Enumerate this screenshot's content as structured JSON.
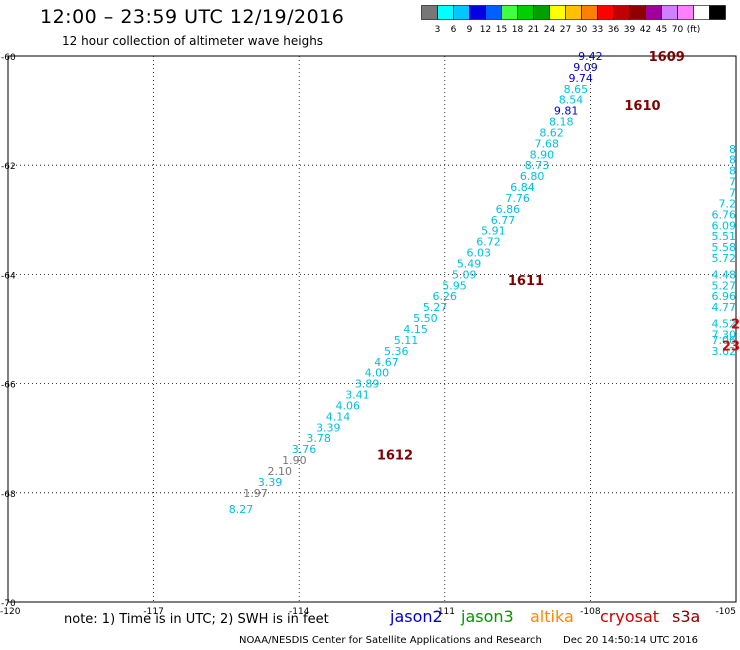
{
  "title": "12:00 – 23:59 UTC 12/19/2016",
  "subtitle": "12 hour collection of altimeter wave heighs",
  "colorbar": {
    "colors": [
      "#777777",
      "#00ffff",
      "#00c8ff",
      "#0000e0",
      "#0060ff",
      "#40ff40",
      "#00d000",
      "#00a000",
      "#ffff00",
      "#ffc000",
      "#ff8000",
      "#ff0000",
      "#c00000",
      "#900000",
      "#a000a0",
      "#d080ff",
      "#ff80ff",
      "#ffffff",
      "#000000"
    ],
    "labels": [
      "3",
      "6",
      "9",
      "12",
      "15",
      "18",
      "21",
      "24",
      "27",
      "30",
      "33",
      "36",
      "39",
      "42",
      "45",
      "70",
      "(ft)"
    ]
  },
  "axes": {
    "lon_ticks": [
      "-117",
      "-114",
      "-111",
      "-108",
      "-105"
    ],
    "lat_ticks": [
      "-60",
      "-62",
      "-64",
      "-66",
      "-68",
      "-70"
    ],
    "corner_label": "-120",
    "lon_range": [
      -120,
      -105
    ],
    "lat_range": [
      -70,
      -60
    ],
    "grid": true
  },
  "track_main": [
    {
      "lon": -108.0,
      "lat": -60.0,
      "v": "9.42",
      "c": "#0000cc"
    },
    {
      "lon": -108.1,
      "lat": -60.2,
      "v": "9.09",
      "c": "#0000cc"
    },
    {
      "lon": -108.2,
      "lat": -60.4,
      "v": "9.74",
      "c": "#0000cc"
    },
    {
      "lon": -108.3,
      "lat": -60.6,
      "v": "8.65",
      "c": "#00c0e0"
    },
    {
      "lon": -108.4,
      "lat": -60.8,
      "v": "8.54",
      "c": "#00c0e0"
    },
    {
      "lon": -108.5,
      "lat": -61.0,
      "v": "9.81",
      "c": "#0000cc"
    },
    {
      "lon": -108.6,
      "lat": -61.2,
      "v": "8.18",
      "c": "#00c0e0"
    },
    {
      "lon": -108.8,
      "lat": -61.4,
      "v": "8.62",
      "c": "#00c0e0"
    },
    {
      "lon": -108.9,
      "lat": -61.6,
      "v": "7.68",
      "c": "#00c0e0"
    },
    {
      "lon": -109.0,
      "lat": -61.8,
      "v": "8.90",
      "c": "#00c0e0"
    },
    {
      "lon": -109.1,
      "lat": -62.0,
      "v": "8.73",
      "c": "#00c0e0"
    },
    {
      "lon": -109.2,
      "lat": -62.2,
      "v": "6.80",
      "c": "#00c0e0"
    },
    {
      "lon": -109.4,
      "lat": -62.4,
      "v": "6.84",
      "c": "#00c0e0"
    },
    {
      "lon": -109.5,
      "lat": -62.6,
      "v": "7.76",
      "c": "#00c0e0"
    },
    {
      "lon": -109.7,
      "lat": -62.8,
      "v": "6.86",
      "c": "#00c0e0"
    },
    {
      "lon": -109.8,
      "lat": -63.0,
      "v": "6.77",
      "c": "#00c0e0"
    },
    {
      "lon": -110.0,
      "lat": -63.2,
      "v": "5.91",
      "c": "#00c0e0"
    },
    {
      "lon": -110.1,
      "lat": -63.4,
      "v": "6.72",
      "c": "#00c0e0"
    },
    {
      "lon": -110.3,
      "lat": -63.6,
      "v": "6.03",
      "c": "#00c0e0"
    },
    {
      "lon": -110.5,
      "lat": -63.8,
      "v": "5.49",
      "c": "#00c0e0"
    },
    {
      "lon": -110.6,
      "lat": -64.0,
      "v": "5.09",
      "c": "#00c0e0"
    },
    {
      "lon": -110.8,
      "lat": -64.2,
      "v": "5.95",
      "c": "#00c0e0"
    },
    {
      "lon": -111.0,
      "lat": -64.4,
      "v": "6.26",
      "c": "#00c0e0"
    },
    {
      "lon": -111.2,
      "lat": -64.6,
      "v": "5.27",
      "c": "#00c0e0"
    },
    {
      "lon": -111.4,
      "lat": -64.8,
      "v": "5.50",
      "c": "#00c0e0"
    },
    {
      "lon": -111.6,
      "lat": -65.0,
      "v": "4.15",
      "c": "#00c0e0"
    },
    {
      "lon": -111.8,
      "lat": -65.2,
      "v": "5.11",
      "c": "#00c0e0"
    },
    {
      "lon": -112.0,
      "lat": -65.4,
      "v": "5.36",
      "c": "#00c0e0"
    },
    {
      "lon": -112.2,
      "lat": -65.6,
      "v": "4.67",
      "c": "#00c0e0"
    },
    {
      "lon": -112.4,
      "lat": -65.8,
      "v": "4.00",
      "c": "#00c0e0"
    },
    {
      "lon": -112.6,
      "lat": -66.0,
      "v": "3.89",
      "c": "#00c0e0"
    },
    {
      "lon": -112.8,
      "lat": -66.2,
      "v": "3.41",
      "c": "#00c0e0"
    },
    {
      "lon": -113.0,
      "lat": -66.4,
      "v": "4.06",
      "c": "#00c0e0"
    },
    {
      "lon": -113.2,
      "lat": -66.6,
      "v": "4.14",
      "c": "#00c0e0"
    },
    {
      "lon": -113.4,
      "lat": -66.8,
      "v": "3.39",
      "c": "#00c0e0"
    },
    {
      "lon": -113.6,
      "lat": -67.0,
      "v": "3.78",
      "c": "#00c0e0"
    },
    {
      "lon": -113.9,
      "lat": -67.2,
      "v": "3.76",
      "c": "#00c0e0"
    },
    {
      "lon": -114.1,
      "lat": -67.4,
      "v": "1.90",
      "c": "#777777"
    },
    {
      "lon": -114.4,
      "lat": -67.6,
      "v": "2.10",
      "c": "#777777"
    },
    {
      "lon": -114.6,
      "lat": -67.8,
      "v": "3.39",
      "c": "#00c0e0"
    },
    {
      "lon": -114.9,
      "lat": -68.0,
      "v": "1.97",
      "c": "#777777"
    },
    {
      "lon": -115.2,
      "lat": -68.3,
      "v": "8.27",
      "c": "#00c0e0"
    }
  ],
  "track_right": [
    {
      "lon": -105.0,
      "lat": -61.7,
      "v": "8",
      "c": "#00c0e0"
    },
    {
      "lon": -105.0,
      "lat": -61.9,
      "v": "8",
      "c": "#00c0e0"
    },
    {
      "lon": -105.0,
      "lat": -62.1,
      "v": "8",
      "c": "#00c0e0"
    },
    {
      "lon": -105.0,
      "lat": -62.3,
      "v": "7",
      "c": "#00c0e0"
    },
    {
      "lon": -105.0,
      "lat": -62.5,
      "v": "7",
      "c": "#00c0e0"
    },
    {
      "lon": -105.0,
      "lat": -62.7,
      "v": "7.2",
      "c": "#00c0e0"
    },
    {
      "lon": -105.0,
      "lat": -62.9,
      "v": "6.76",
      "c": "#00c0e0"
    },
    {
      "lon": -105.0,
      "lat": -63.1,
      "v": "6.09",
      "c": "#00c0e0"
    },
    {
      "lon": -105.0,
      "lat": -63.3,
      "v": "5.51",
      "c": "#00c0e0"
    },
    {
      "lon": -105.0,
      "lat": -63.5,
      "v": "5.58",
      "c": "#00c0e0"
    },
    {
      "lon": -105.0,
      "lat": -63.7,
      "v": "5.72",
      "c": "#00c0e0"
    },
    {
      "lon": -105.0,
      "lat": -64.0,
      "v": "4.48",
      "c": "#00c0e0"
    },
    {
      "lon": -105.0,
      "lat": -64.2,
      "v": "5.27",
      "c": "#00c0e0"
    },
    {
      "lon": -105.0,
      "lat": -64.4,
      "v": "6.96",
      "c": "#00c0e0"
    },
    {
      "lon": -105.0,
      "lat": -64.6,
      "v": "4.77",
      "c": "#00c0e0"
    },
    {
      "lon": -105.0,
      "lat": -64.9,
      "v": "4.52",
      "c": "#00c0e0"
    },
    {
      "lon": -105.0,
      "lat": -65.1,
      "v": "7.30",
      "c": "#00c0e0"
    },
    {
      "lon": -105.0,
      "lat": -65.2,
      "v": "7.06",
      "c": "#00c0e0"
    },
    {
      "lon": -105.0,
      "lat": -65.4,
      "v": "3.62",
      "c": "#00c0e0"
    }
  ],
  "time_labels": [
    {
      "lon": -106.8,
      "lat": -60.0,
      "text": "1609",
      "c": "#800000"
    },
    {
      "lon": -107.3,
      "lat": -60.9,
      "text": "1610",
      "c": "#800000"
    },
    {
      "lon": -109.7,
      "lat": -64.1,
      "text": "1611",
      "c": "#800000"
    },
    {
      "lon": -112.4,
      "lat": -67.3,
      "text": "1612",
      "c": "#800000"
    },
    {
      "lon": -105.0,
      "lat": -64.9,
      "text": "2",
      "c": "#dd0000"
    },
    {
      "lon": -105.0,
      "lat": -65.3,
      "text": "23",
      "c": "#dd0000"
    }
  ],
  "note": "note: 1) Time is in UTC; 2) SWH is in feet",
  "satellites": [
    {
      "name": "jason2",
      "color": "#0000cc"
    },
    {
      "name": "jason3",
      "color": "#009900"
    },
    {
      "name": "altika",
      "color": "#ff8800"
    },
    {
      "name": "cryosat",
      "color": "#cc0000"
    },
    {
      "name": "s3a",
      "color": "#880000"
    }
  ],
  "footer": {
    "agency": "NOAA/NESDIS Center for Satellite Applications and Research",
    "timestamp": "Dec 20 14:50:14 UTC 2016"
  }
}
